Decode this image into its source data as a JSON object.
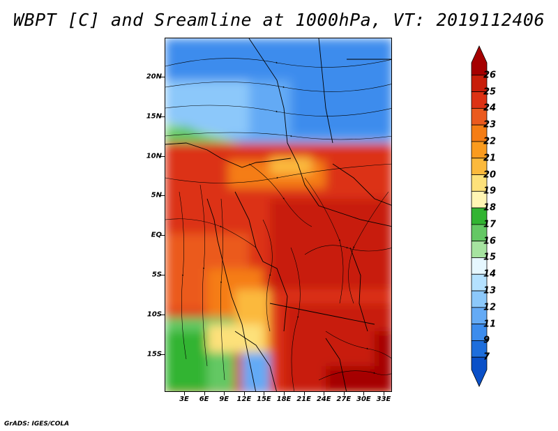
{
  "title": "WBPT [C] and Sreamline at 1000hPa, VT: 2019112406",
  "credit": "GrADS: IGES/COLA",
  "map": {
    "lat_labels": [
      "20N",
      "15N",
      "10N",
      "5N",
      "EQ",
      "5S",
      "10S",
      "15S"
    ],
    "lon_labels": [
      "3E",
      "6E",
      "9E",
      "12E",
      "15E",
      "18E",
      "21E",
      "24E",
      "27E",
      "30E",
      "33E"
    ]
  },
  "colorbar": {
    "labels": [
      "26",
      "25",
      "24",
      "23",
      "22",
      "21",
      "20",
      "19",
      "18",
      "17",
      "16",
      "15",
      "14",
      "13",
      "12",
      "11",
      "9",
      "7"
    ],
    "colors": [
      "#a50000",
      "#c81e0a",
      "#dc3214",
      "#eb5a1e",
      "#f57d14",
      "#fa9b1e",
      "#fbb93c",
      "#fde17a",
      "#fff5b4",
      "#32b432",
      "#64c864",
      "#a6e3a0",
      "#e6f7ff",
      "#b4e1ff",
      "#8cc8fa",
      "#64aaf5",
      "#3c8ced",
      "#1e6edc",
      "#0a50c8"
    ]
  }
}
